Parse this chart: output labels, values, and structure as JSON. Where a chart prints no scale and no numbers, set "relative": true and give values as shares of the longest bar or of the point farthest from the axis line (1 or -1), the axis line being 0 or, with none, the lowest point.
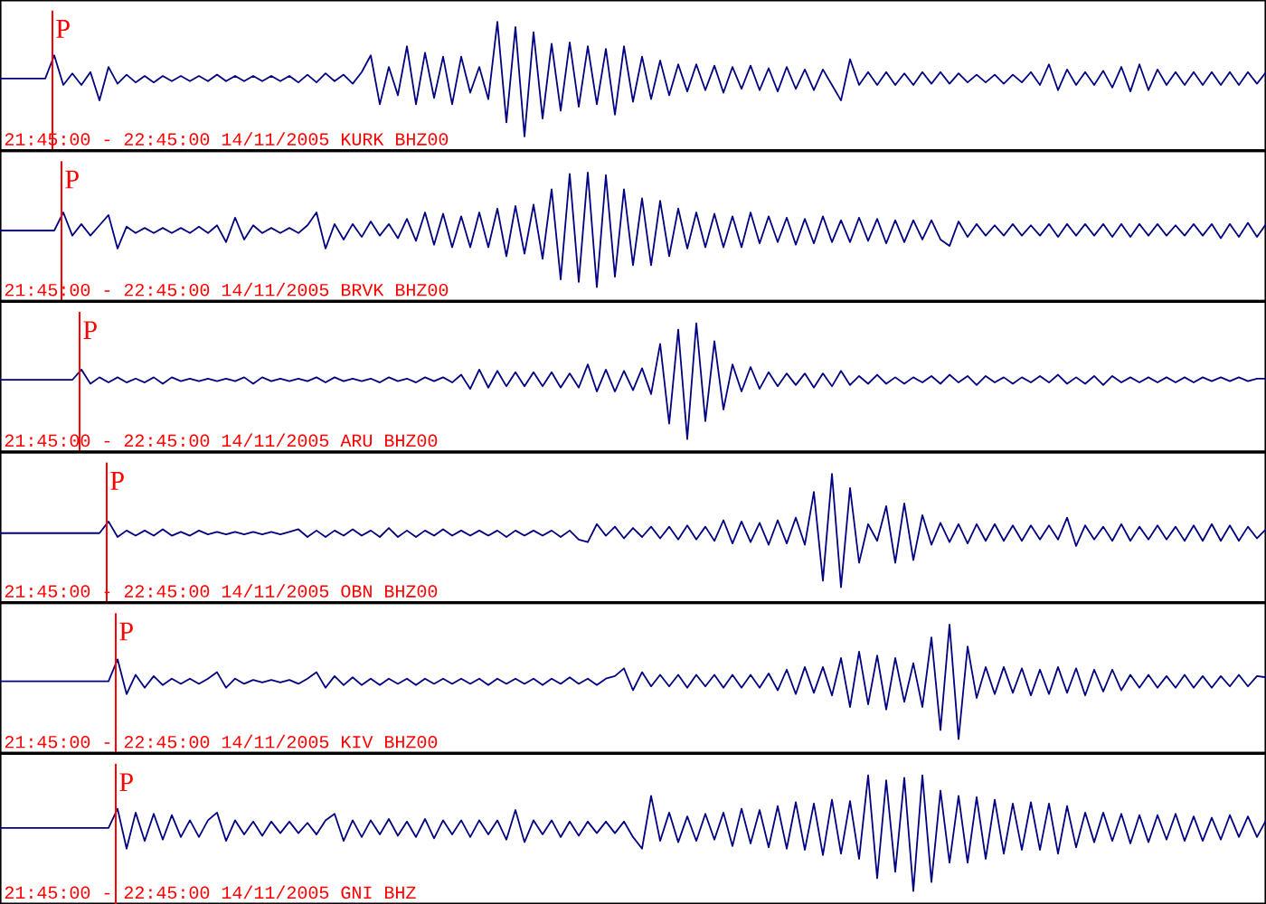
{
  "chart_data": [
    {
      "type": "line",
      "relative": true,
      "categories": [
        null,
        null,
        null,
        null,
        null,
        null,
        null,
        null,
        null,
        null,
        null,
        null,
        null,
        null,
        null,
        null,
        null,
        null,
        null,
        null,
        null,
        null,
        null,
        null,
        null,
        null,
        null,
        null,
        null,
        null,
        null,
        null,
        null,
        null,
        null,
        null,
        null,
        null,
        null,
        null,
        null,
        null,
        null,
        null,
        null,
        null,
        null,
        null,
        null,
        null,
        null,
        null,
        null,
        null,
        null,
        null,
        null,
        null,
        null,
        null,
        null,
        null,
        null,
        null,
        null,
        null,
        null,
        null,
        null,
        null,
        null,
        null,
        null,
        null,
        null,
        null,
        null,
        null,
        null,
        null,
        null,
        null,
        null,
        null,
        null,
        null,
        null,
        null,
        null,
        null,
        null,
        null,
        null,
        null,
        null,
        null,
        null,
        null,
        null,
        null,
        null,
        null,
        null,
        null,
        null,
        null,
        null,
        null,
        null,
        null,
        null,
        null,
        null,
        null,
        null,
        null,
        null,
        null,
        null,
        null,
        null,
        null,
        null,
        null,
        null,
        null,
        null,
        null,
        null,
        null,
        null,
        null,
        null,
        null,
        null,
        null,
        null,
        null,
        null,
        null,
        null
      ],
      "series": [
        {
          "color": "#000080",
          "values": [
            0.56,
            0.56,
            0.56,
            0.56,
            0.56,
            0.56,
            0.74,
            0.51,
            0.6,
            0.51,
            0.61,
            0.39,
            0.65,
            0.52,
            0.59,
            0.53,
            0.58,
            0.53,
            0.58,
            0.54,
            0.58,
            0.54,
            0.58,
            0.54,
            0.59,
            0.54,
            0.58,
            0.54,
            0.58,
            0.54,
            0.58,
            0.54,
            0.58,
            0.53,
            0.59,
            0.53,
            0.6,
            0.54,
            0.59,
            0.52,
            0.61,
            0.74,
            0.36,
            0.65,
            0.43,
            0.81,
            0.36,
            0.76,
            0.41,
            0.73,
            0.36,
            0.73,
            0.45,
            0.65,
            0.4,
            1,
            0.22,
            0.96,
            0.11,
            0.92,
            0.25,
            0.83,
            0.31,
            0.84,
            0.34,
            0.81,
            0.36,
            0.79,
            0.28,
            0.81,
            0.38,
            0.73,
            0.4,
            0.7,
            0.43,
            0.67,
            0.46,
            0.67,
            0.47,
            0.66,
            0.45,
            0.65,
            0.48,
            0.66,
            0.47,
            0.64,
            0.46,
            0.65,
            0.48,
            0.63,
            0.47,
            0.63,
            0.51,
            0.39,
            0.71,
            0.51,
            0.61,
            0.51,
            0.61,
            0.51,
            0.6,
            0.51,
            0.61,
            0.52,
            0.61,
            0.52,
            0.6,
            0.53,
            0.59,
            0.53,
            0.59,
            0.52,
            0.59,
            0.53,
            0.61,
            0.51,
            0.67,
            0.47,
            0.63,
            0.51,
            0.61,
            0.51,
            0.62,
            0.49,
            0.65,
            0.46,
            0.67,
            0.47,
            0.63,
            0.51,
            0.61,
            0.51,
            0.61,
            0.51,
            0.61,
            0.51,
            0.61,
            0.51,
            0.61,
            0.52,
            0.61
          ]
        }
      ],
      "annotations": [
        "P",
        "21:45:00 - 22:45:00 14/11/2005 KURK BHZ00"
      ]
    },
    {
      "type": "line",
      "relative": true,
      "categories": [
        null,
        null,
        null,
        null,
        null,
        null,
        null,
        null,
        null,
        null,
        null,
        null,
        null,
        null,
        null,
        null,
        null,
        null,
        null,
        null,
        null,
        null,
        null,
        null,
        null,
        null,
        null,
        null,
        null,
        null,
        null,
        null,
        null,
        null,
        null,
        null,
        null,
        null,
        null,
        null,
        null,
        null,
        null,
        null,
        null,
        null,
        null,
        null,
        null,
        null,
        null,
        null,
        null,
        null,
        null,
        null,
        null,
        null,
        null,
        null,
        null,
        null,
        null,
        null,
        null,
        null,
        null,
        null,
        null,
        null,
        null,
        null,
        null,
        null,
        null,
        null,
        null,
        null,
        null,
        null,
        null,
        null,
        null,
        null,
        null,
        null,
        null,
        null,
        null,
        null,
        null,
        null,
        null,
        null,
        null,
        null,
        null,
        null,
        null,
        null,
        null,
        null,
        null,
        null,
        null,
        null,
        null,
        null,
        null,
        null,
        null,
        null,
        null,
        null,
        null,
        null,
        null,
        null,
        null,
        null,
        null,
        null,
        null,
        null,
        null,
        null,
        null,
        null,
        null,
        null,
        null,
        null,
        null,
        null,
        null,
        null,
        null,
        null,
        null,
        null,
        null
      ],
      "series": [
        {
          "color": "#000080",
          "values": [
            0.55,
            0.55,
            0.55,
            0.55,
            0.55,
            0.55,
            0.55,
            0.69,
            0.51,
            0.6,
            0.51,
            0.59,
            0.67,
            0.41,
            0.58,
            0.53,
            0.57,
            0.53,
            0.57,
            0.53,
            0.57,
            0.53,
            0.58,
            0.53,
            0.59,
            0.46,
            0.65,
            0.48,
            0.59,
            0.53,
            0.57,
            0.53,
            0.57,
            0.53,
            0.59,
            0.69,
            0.41,
            0.6,
            0.48,
            0.6,
            0.5,
            0.62,
            0.51,
            0.6,
            0.49,
            0.64,
            0.47,
            0.69,
            0.44,
            0.68,
            0.42,
            0.66,
            0.42,
            0.69,
            0.42,
            0.72,
            0.35,
            0.74,
            0.37,
            0.75,
            0.33,
            0.87,
            0.17,
            0.99,
            0.15,
            1,
            0.11,
            0.98,
            0.19,
            0.87,
            0.28,
            0.8,
            0.28,
            0.78,
            0.35,
            0.72,
            0.41,
            0.69,
            0.42,
            0.68,
            0.42,
            0.66,
            0.42,
            0.69,
            0.45,
            0.66,
            0.46,
            0.65,
            0.44,
            0.64,
            0.45,
            0.66,
            0.46,
            0.63,
            0.46,
            0.65,
            0.47,
            0.64,
            0.45,
            0.63,
            0.46,
            0.63,
            0.48,
            0.63,
            0.48,
            0.43,
            0.62,
            0.5,
            0.6,
            0.51,
            0.59,
            0.51,
            0.6,
            0.51,
            0.59,
            0.51,
            0.6,
            0.5,
            0.6,
            0.51,
            0.6,
            0.51,
            0.6,
            0.5,
            0.6,
            0.5,
            0.6,
            0.51,
            0.6,
            0.51,
            0.59,
            0.51,
            0.6,
            0.51,
            0.6,
            0.49,
            0.6,
            0.5,
            0.61,
            0.5,
            0.6
          ]
        }
      ],
      "annotations": [
        "P",
        "21:45:00 - 22:45:00 14/11/2005 BRVK BHZ00"
      ]
    },
    {
      "type": "line",
      "relative": true,
      "categories": [
        null,
        null,
        null,
        null,
        null,
        null,
        null,
        null,
        null,
        null,
        null,
        null,
        null,
        null,
        null,
        null,
        null,
        null,
        null,
        null,
        null,
        null,
        null,
        null,
        null,
        null,
        null,
        null,
        null,
        null,
        null,
        null,
        null,
        null,
        null,
        null,
        null,
        null,
        null,
        null,
        null,
        null,
        null,
        null,
        null,
        null,
        null,
        null,
        null,
        null,
        null,
        null,
        null,
        null,
        null,
        null,
        null,
        null,
        null,
        null,
        null,
        null,
        null,
        null,
        null,
        null,
        null,
        null,
        null,
        null,
        null,
        null,
        null,
        null,
        null,
        null,
        null,
        null,
        null,
        null,
        null,
        null,
        null,
        null,
        null,
        null,
        null,
        null,
        null,
        null,
        null,
        null,
        null,
        null,
        null,
        null,
        null,
        null,
        null,
        null,
        null,
        null,
        null,
        null,
        null,
        null,
        null,
        null,
        null,
        null,
        null,
        null,
        null,
        null,
        null,
        null,
        null,
        null,
        null,
        null,
        null,
        null,
        null,
        null,
        null,
        null,
        null,
        null,
        null,
        null,
        null,
        null,
        null,
        null,
        null,
        null,
        null,
        null,
        null,
        null,
        null
      ],
      "series": [
        {
          "color": "#000080",
          "values": [
            0.56,
            0.56,
            0.56,
            0.56,
            0.56,
            0.56,
            0.56,
            0.56,
            0.56,
            0.64,
            0.53,
            0.58,
            0.54,
            0.58,
            0.54,
            0.57,
            0.54,
            0.58,
            0.53,
            0.58,
            0.55,
            0.57,
            0.55,
            0.57,
            0.55,
            0.57,
            0.55,
            0.58,
            0.53,
            0.58,
            0.55,
            0.57,
            0.55,
            0.57,
            0.55,
            0.58,
            0.54,
            0.58,
            0.55,
            0.57,
            0.55,
            0.57,
            0.54,
            0.58,
            0.55,
            0.57,
            0.54,
            0.58,
            0.55,
            0.58,
            0.54,
            0.6,
            0.49,
            0.64,
            0.5,
            0.63,
            0.51,
            0.62,
            0.51,
            0.62,
            0.51,
            0.62,
            0.5,
            0.61,
            0.5,
            0.68,
            0.47,
            0.64,
            0.47,
            0.63,
            0.48,
            0.65,
            0.45,
            0.84,
            0.22,
            0.95,
            0.1,
            1,
            0.24,
            0.86,
            0.33,
            0.68,
            0.47,
            0.66,
            0.49,
            0.62,
            0.51,
            0.61,
            0.52,
            0.61,
            0.5,
            0.61,
            0.51,
            0.63,
            0.52,
            0.59,
            0.53,
            0.6,
            0.53,
            0.58,
            0.53,
            0.58,
            0.54,
            0.59,
            0.53,
            0.6,
            0.54,
            0.59,
            0.52,
            0.59,
            0.54,
            0.58,
            0.53,
            0.58,
            0.54,
            0.59,
            0.54,
            0.6,
            0.53,
            0.58,
            0.53,
            0.59,
            0.52,
            0.59,
            0.54,
            0.58,
            0.54,
            0.58,
            0.54,
            0.58,
            0.54,
            0.58,
            0.54,
            0.58,
            0.55,
            0.58,
            0.55,
            0.58,
            0.55,
            0.57,
            0.57
          ]
        }
      ],
      "annotations": [
        "P",
        "21:45:00 - 22:45:00 14/11/2005 ARU BHZ00"
      ]
    },
    {
      "type": "line",
      "relative": true,
      "categories": [
        null,
        null,
        null,
        null,
        null,
        null,
        null,
        null,
        null,
        null,
        null,
        null,
        null,
        null,
        null,
        null,
        null,
        null,
        null,
        null,
        null,
        null,
        null,
        null,
        null,
        null,
        null,
        null,
        null,
        null,
        null,
        null,
        null,
        null,
        null,
        null,
        null,
        null,
        null,
        null,
        null,
        null,
        null,
        null,
        null,
        null,
        null,
        null,
        null,
        null,
        null,
        null,
        null,
        null,
        null,
        null,
        null,
        null,
        null,
        null,
        null,
        null,
        null,
        null,
        null,
        null,
        null,
        null,
        null,
        null,
        null,
        null,
        null,
        null,
        null,
        null,
        null,
        null,
        null,
        null,
        null,
        null,
        null,
        null,
        null,
        null,
        null,
        null,
        null,
        null,
        null,
        null,
        null,
        null,
        null,
        null,
        null,
        null,
        null,
        null,
        null,
        null,
        null,
        null,
        null,
        null,
        null,
        null,
        null,
        null,
        null,
        null,
        null,
        null,
        null,
        null,
        null,
        null,
        null,
        null,
        null,
        null,
        null,
        null,
        null,
        null,
        null,
        null,
        null,
        null,
        null,
        null,
        null,
        null,
        null,
        null,
        null,
        null,
        null,
        null,
        null
      ],
      "series": [
        {
          "color": "#000080",
          "values": [
            0.54,
            0.54,
            0.54,
            0.54,
            0.54,
            0.54,
            0.54,
            0.54,
            0.54,
            0.54,
            0.54,
            0.54,
            0.63,
            0.51,
            0.56,
            0.52,
            0.56,
            0.52,
            0.57,
            0.52,
            0.55,
            0.52,
            0.56,
            0.53,
            0.55,
            0.53,
            0.55,
            0.53,
            0.55,
            0.53,
            0.55,
            0.53,
            0.55,
            0.57,
            0.51,
            0.56,
            0.51,
            0.56,
            0.52,
            0.57,
            0.52,
            0.56,
            0.51,
            0.58,
            0.51,
            0.56,
            0.51,
            0.56,
            0.52,
            0.57,
            0.52,
            0.56,
            0.52,
            0.56,
            0.52,
            0.56,
            0.51,
            0.56,
            0.52,
            0.56,
            0.52,
            0.56,
            0.51,
            0.56,
            0.49,
            0.47,
            0.61,
            0.52,
            0.59,
            0.5,
            0.58,
            0.51,
            0.59,
            0.5,
            0.59,
            0.49,
            0.6,
            0.49,
            0.59,
            0.48,
            0.64,
            0.46,
            0.63,
            0.47,
            0.62,
            0.45,
            0.64,
            0.46,
            0.66,
            0.45,
            0.86,
            0.17,
            1,
            0.12,
            0.89,
            0.31,
            0.61,
            0.48,
            0.75,
            0.31,
            0.77,
            0.33,
            0.68,
            0.45,
            0.62,
            0.47,
            0.61,
            0.46,
            0.61,
            0.48,
            0.61,
            0.48,
            0.6,
            0.48,
            0.6,
            0.49,
            0.6,
            0.49,
            0.66,
            0.44,
            0.6,
            0.49,
            0.59,
            0.48,
            0.61,
            0.48,
            0.59,
            0.49,
            0.6,
            0.49,
            0.59,
            0.48,
            0.6,
            0.48,
            0.61,
            0.48,
            0.6,
            0.48,
            0.59,
            0.5,
            0.57
          ]
        }
      ],
      "annotations": [
        "P",
        "21:45:00 - 22:45:00 14/11/2005 OBN BHZ00"
      ]
    },
    {
      "type": "line",
      "relative": true,
      "categories": [
        null,
        null,
        null,
        null,
        null,
        null,
        null,
        null,
        null,
        null,
        null,
        null,
        null,
        null,
        null,
        null,
        null,
        null,
        null,
        null,
        null,
        null,
        null,
        null,
        null,
        null,
        null,
        null,
        null,
        null,
        null,
        null,
        null,
        null,
        null,
        null,
        null,
        null,
        null,
        null,
        null,
        null,
        null,
        null,
        null,
        null,
        null,
        null,
        null,
        null,
        null,
        null,
        null,
        null,
        null,
        null,
        null,
        null,
        null,
        null,
        null,
        null,
        null,
        null,
        null,
        null,
        null,
        null,
        null,
        null,
        null,
        null,
        null,
        null,
        null,
        null,
        null,
        null,
        null,
        null,
        null,
        null,
        null,
        null,
        null,
        null,
        null,
        null,
        null,
        null,
        null,
        null,
        null,
        null,
        null,
        null,
        null,
        null,
        null,
        null,
        null,
        null,
        null,
        null,
        null,
        null,
        null,
        null,
        null,
        null,
        null,
        null,
        null,
        null,
        null,
        null,
        null,
        null,
        null,
        null,
        null,
        null,
        null,
        null,
        null,
        null,
        null,
        null,
        null,
        null,
        null,
        null,
        null,
        null,
        null,
        null,
        null,
        null,
        null,
        null,
        null
      ],
      "series": [
        {
          "color": "#000080",
          "values": [
            0.56,
            0.56,
            0.56,
            0.56,
            0.56,
            0.56,
            0.56,
            0.56,
            0.56,
            0.56,
            0.56,
            0.56,
            0.56,
            0.73,
            0.46,
            0.61,
            0.51,
            0.6,
            0.53,
            0.58,
            0.54,
            0.58,
            0.54,
            0.58,
            0.63,
            0.51,
            0.58,
            0.54,
            0.57,
            0.55,
            0.57,
            0.55,
            0.57,
            0.54,
            0.58,
            0.63,
            0.51,
            0.6,
            0.53,
            0.59,
            0.53,
            0.58,
            0.53,
            0.58,
            0.54,
            0.58,
            0.53,
            0.58,
            0.54,
            0.58,
            0.54,
            0.58,
            0.54,
            0.58,
            0.53,
            0.58,
            0.54,
            0.58,
            0.54,
            0.58,
            0.53,
            0.58,
            0.54,
            0.59,
            0.54,
            0.58,
            0.53,
            0.58,
            0.6,
            0.66,
            0.49,
            0.63,
            0.52,
            0.61,
            0.52,
            0.61,
            0.51,
            0.61,
            0.52,
            0.61,
            0.51,
            0.61,
            0.51,
            0.61,
            0.51,
            0.62,
            0.49,
            0.65,
            0.46,
            0.67,
            0.47,
            0.67,
            0.45,
            0.74,
            0.36,
            0.79,
            0.38,
            0.76,
            0.34,
            0.74,
            0.4,
            0.7,
            0.36,
            0.9,
            0.18,
            1,
            0.11,
            0.83,
            0.43,
            0.67,
            0.46,
            0.67,
            0.47,
            0.66,
            0.45,
            0.65,
            0.46,
            0.67,
            0.47,
            0.66,
            0.45,
            0.65,
            0.48,
            0.65,
            0.49,
            0.61,
            0.51,
            0.61,
            0.51,
            0.6,
            0.51,
            0.61,
            0.51,
            0.6,
            0.51,
            0.6,
            0.52,
            0.61,
            0.52,
            0.6,
            0.59
          ]
        }
      ],
      "annotations": [
        "P",
        "21:45:00 - 22:45:00 14/11/2005 KIV BHZ00"
      ]
    },
    {
      "type": "line",
      "relative": true,
      "categories": [
        null,
        null,
        null,
        null,
        null,
        null,
        null,
        null,
        null,
        null,
        null,
        null,
        null,
        null,
        null,
        null,
        null,
        null,
        null,
        null,
        null,
        null,
        null,
        null,
        null,
        null,
        null,
        null,
        null,
        null,
        null,
        null,
        null,
        null,
        null,
        null,
        null,
        null,
        null,
        null,
        null,
        null,
        null,
        null,
        null,
        null,
        null,
        null,
        null,
        null,
        null,
        null,
        null,
        null,
        null,
        null,
        null,
        null,
        null,
        null,
        null,
        null,
        null,
        null,
        null,
        null,
        null,
        null,
        null,
        null,
        null,
        null,
        null,
        null,
        null,
        null,
        null,
        null,
        null,
        null,
        null,
        null,
        null,
        null,
        null,
        null,
        null,
        null,
        null,
        null,
        null,
        null,
        null,
        null,
        null,
        null,
        null,
        null,
        null,
        null,
        null,
        null,
        null,
        null,
        null,
        null,
        null,
        null,
        null,
        null,
        null,
        null,
        null,
        null,
        null,
        null,
        null,
        null,
        null,
        null,
        null,
        null,
        null,
        null,
        null,
        null,
        null,
        null,
        null,
        null,
        null,
        null,
        null,
        null,
        null,
        null,
        null,
        null,
        null,
        null,
        null
      ],
      "series": [
        {
          "color": "#000080",
          "values": [
            0.59,
            0.59,
            0.59,
            0.59,
            0.59,
            0.59,
            0.59,
            0.59,
            0.59,
            0.59,
            0.59,
            0.59,
            0.59,
            0.74,
            0.43,
            0.71,
            0.49,
            0.7,
            0.5,
            0.69,
            0.52,
            0.65,
            0.52,
            0.65,
            0.71,
            0.49,
            0.65,
            0.54,
            0.64,
            0.53,
            0.64,
            0.55,
            0.64,
            0.55,
            0.63,
            0.54,
            0.65,
            0.7,
            0.49,
            0.65,
            0.52,
            0.65,
            0.54,
            0.66,
            0.53,
            0.64,
            0.52,
            0.66,
            0.51,
            0.65,
            0.54,
            0.65,
            0.52,
            0.65,
            0.54,
            0.65,
            0.5,
            0.73,
            0.48,
            0.65,
            0.54,
            0.65,
            0.52,
            0.64,
            0.53,
            0.64,
            0.55,
            0.64,
            0.55,
            0.64,
            0.52,
            0.43,
            0.84,
            0.49,
            0.71,
            0.48,
            0.68,
            0.49,
            0.7,
            0.5,
            0.71,
            0.45,
            0.74,
            0.47,
            0.73,
            0.44,
            0.76,
            0.43,
            0.79,
            0.42,
            0.78,
            0.38,
            0.81,
            0.39,
            0.8,
            0.35,
            1,
            0.2,
            0.96,
            0.25,
            0.98,
            0.1,
            1,
            0.17,
            0.88,
            0.32,
            0.84,
            0.32,
            0.83,
            0.35,
            0.81,
            0.39,
            0.78,
            0.42,
            0.79,
            0.42,
            0.78,
            0.39,
            0.76,
            0.44,
            0.71,
            0.48,
            0.71,
            0.49,
            0.7,
            0.47,
            0.69,
            0.48,
            0.69,
            0.5,
            0.7,
            0.49,
            0.68,
            0.49,
            0.67,
            0.5,
            0.69,
            0.52,
            0.68,
            0.52,
            0.65
          ]
        }
      ],
      "annotations": [
        "P",
        "21:45:00 - 22:45:00 14/11/2005 GNI BHZ"
      ]
    }
  ]
}
